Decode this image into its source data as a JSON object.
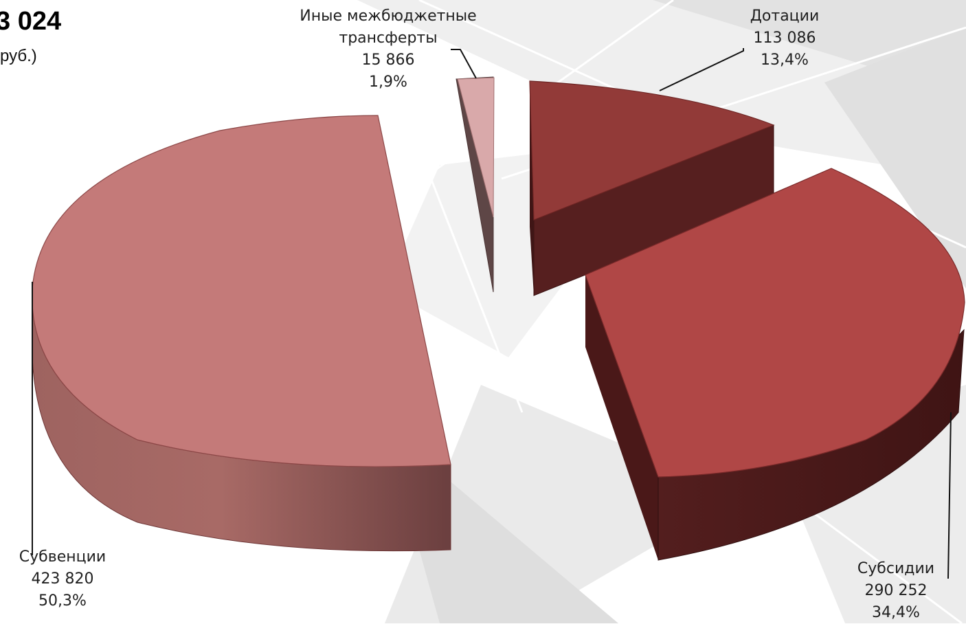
{
  "header": {
    "total_fragment": "3 024",
    "unit_fragment": "руб.)"
  },
  "chart_data": {
    "type": "pie",
    "title": "",
    "style": "3d exploded",
    "slices": [
      {
        "name": "Иные межбюджетные трансферты",
        "name_line1": "Иные межбюджетные",
        "name_line2": "трансферты",
        "value": 15866,
        "value_label": "15 866",
        "percent": 1.9,
        "percent_label": "1,9%",
        "color": "#D9A9AA"
      },
      {
        "name": "Дотации",
        "value": 113086,
        "value_label": "113 086",
        "percent": 13.4,
        "percent_label": "13,4%",
        "color": "#923A38"
      },
      {
        "name": "Субсидии",
        "value": 290252,
        "value_label": "290 252",
        "percent": 34.4,
        "percent_label": "34,4%",
        "color": "#B04746"
      },
      {
        "name": "Субвенции",
        "value": 423820,
        "value_label": "423 820",
        "percent": 50.3,
        "percent_label": "50,3%",
        "color": "#C47A79"
      }
    ]
  }
}
